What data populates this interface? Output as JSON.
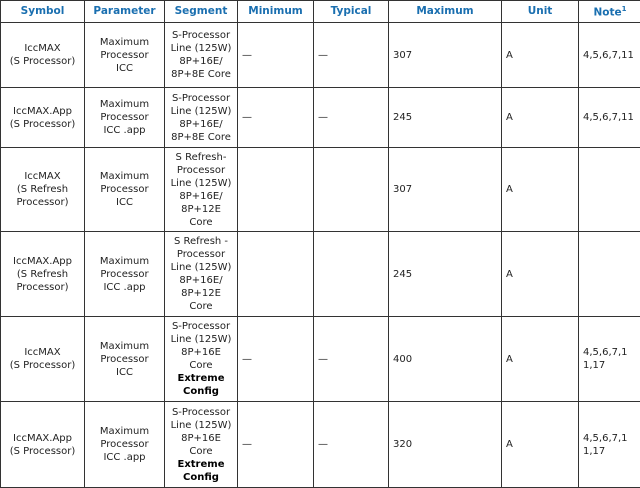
{
  "headers": [
    "Symbol",
    "Parameter",
    "Segment",
    "Minimum",
    "Typical",
    "Maximum",
    "Unit",
    "Note"
  ],
  "note_superscript": "1",
  "rows": [
    {
      "symbol": [
        "IccMAX",
        "(S Processor)"
      ],
      "parameter": [
        "Maximum",
        "Processor",
        "ICC"
      ],
      "segment": [
        "S-Processor",
        "Line (125W)",
        "8P+16E/",
        "8P+8E Core"
      ],
      "segment_bold": [],
      "minimum": "—",
      "typical": "—",
      "maximum": "307",
      "unit": "A",
      "note": "4,5,6,7,11",
      "height": 65
    },
    {
      "symbol": [
        "IccMAX.App",
        "(S Processor)"
      ],
      "parameter": [
        "Maximum",
        "Processor",
        "ICC .app"
      ],
      "segment": [
        "S-Processor",
        "Line (125W)",
        "8P+16E/",
        "8P+8E Core"
      ],
      "segment_bold": [],
      "minimum": "—",
      "typical": "—",
      "maximum": "245",
      "unit": "A",
      "note": "4,5,6,7,11",
      "height": 60
    },
    {
      "symbol": [
        "IccMAX",
        "(S Refresh",
        "Processor)"
      ],
      "parameter": [
        "Maximum",
        "Processor",
        "ICC"
      ],
      "segment": [
        "S Refresh-",
        "Processor",
        "Line (125W)",
        "8P+16E/",
        "8P+12E",
        "Core"
      ],
      "segment_bold": [],
      "minimum": "",
      "typical": "",
      "maximum": "307",
      "unit": "A",
      "note": "",
      "height": 84
    },
    {
      "symbol": [
        "IccMAX.App",
        "(S Refresh",
        "Processor)"
      ],
      "parameter": [
        "Maximum",
        "Processor",
        "ICC .app"
      ],
      "segment": [
        "S Refresh -",
        "Processor",
        "Line (125W)",
        "8P+16E/",
        "8P+12E",
        "Core"
      ],
      "segment_bold": [],
      "minimum": "",
      "typical": "",
      "maximum": "245",
      "unit": "A",
      "note": "",
      "height": 85
    },
    {
      "symbol": [
        "IccMAX",
        "(S Processor)"
      ],
      "parameter": [
        "Maximum",
        "Processor",
        "ICC"
      ],
      "segment": [
        "S-Processor",
        "Line (125W)",
        "8P+16E",
        "Core"
      ],
      "segment_bold": [
        "Extreme",
        "Config"
      ],
      "minimum": "—",
      "typical": "—",
      "maximum": "400",
      "unit": "A",
      "note": "4,5,6,7,11,17",
      "height": 85
    },
    {
      "symbol": [
        "IccMAX.App",
        "(S Processor)"
      ],
      "parameter": [
        "Maximum",
        "Processor",
        "ICC .app"
      ],
      "segment": [
        "S-Processor",
        "Line (125W)",
        "8P+16E",
        "Core"
      ],
      "segment_bold": [
        "Extreme",
        "Config"
      ],
      "minimum": "—",
      "typical": "—",
      "maximum": "320",
      "unit": "A",
      "note": "4,5,6,7,11,17",
      "height": 86
    }
  ]
}
